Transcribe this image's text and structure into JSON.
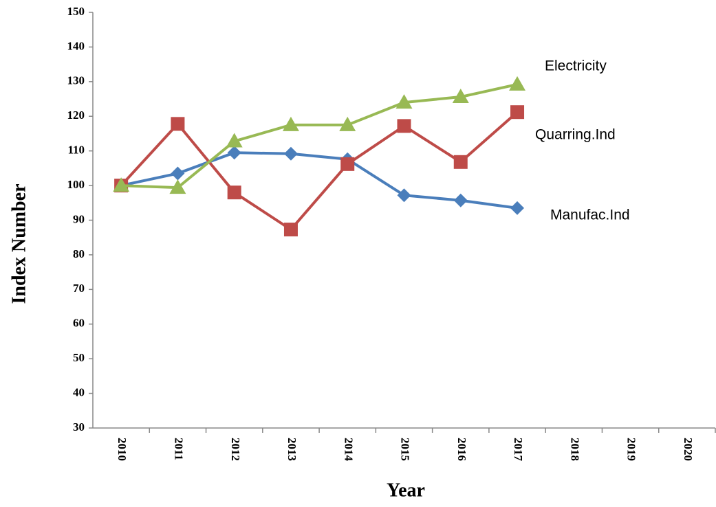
{
  "chart_data": {
    "type": "line",
    "y_label": "Index Number",
    "x_label": "Year",
    "categories": [
      "2010",
      "2011",
      "2012",
      "2013",
      "2014",
      "2015",
      "2016",
      "2017",
      "2018",
      "2019",
      "2020"
    ],
    "series": [
      {
        "name": "Manufac.Ind",
        "color": "#4a7ebb",
        "marker": "diamond",
        "values": [
          100,
          103.5,
          109.5,
          109.2,
          107.6,
          97.2,
          95.7,
          93.5,
          null,
          null,
          null
        ]
      },
      {
        "name": "Quarring.Ind",
        "color": "#be4b48",
        "marker": "square",
        "values": [
          100,
          117.8,
          98,
          87.3,
          106.2,
          117.2,
          106.8,
          121.2,
          null,
          null,
          null
        ]
      },
      {
        "name": "Electricity",
        "color": "#98b954",
        "marker": "triangle",
        "values": [
          100,
          99.4,
          112.8,
          117.5,
          117.5,
          124,
          125.6,
          129.2,
          null,
          null,
          null
        ]
      }
    ],
    "ylim": [
      30,
      150
    ],
    "yticks": [
      30,
      40,
      50,
      60,
      70,
      80,
      90,
      100,
      110,
      120,
      130,
      140,
      150
    ],
    "grid": false
  }
}
